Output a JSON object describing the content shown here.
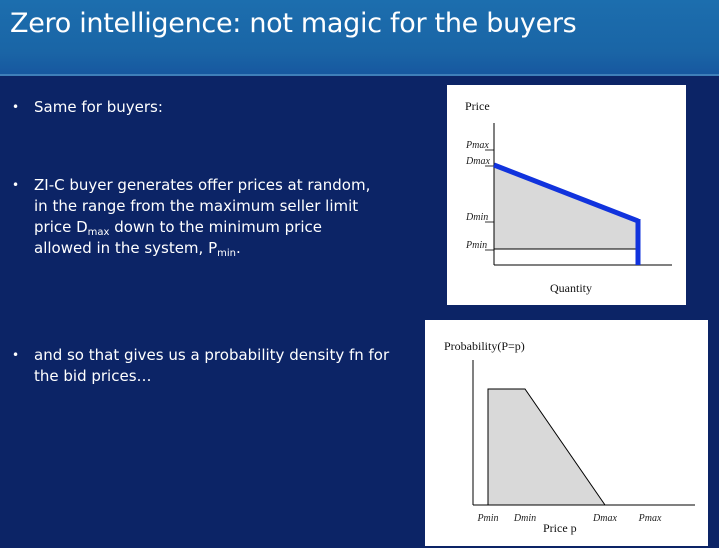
{
  "slide": {
    "title": "Zero intelligence: not magic for the buyers",
    "bullets": [
      {
        "lines": [
          "Same for buyers:"
        ]
      },
      {
        "line1": "ZI-C buyer generates offer prices at random,",
        "line2": "in the range from the maximum seller limit",
        "line3_pre": "price D",
        "line3_sub": "max",
        "line3_post": " down to the minimum price",
        "line4_pre": "allowed in the system, P",
        "line4_sub": "min",
        "line4_post": "."
      },
      {
        "line1": "and so that gives us a probability density fn for",
        "line2": "the bid prices…"
      }
    ],
    "bullet_symbol": "•"
  },
  "chart_data": [
    {
      "type": "line",
      "ylabel": "Price",
      "xlabel": "Quantity",
      "y_ticks": [
        "Pmax",
        "Dmax",
        "Dmin",
        "Pmin"
      ],
      "series": [
        {
          "x": [
            0,
            1
          ],
          "y": [
            "Dmax",
            "Dmin"
          ]
        }
      ],
      "fill": "region below the line down to Pmin",
      "colors": {
        "line": "#1133dd",
        "fill": "#d9d9d9"
      }
    },
    {
      "type": "area",
      "ylabel": "Probability(P=p)",
      "xlabel": "Price p",
      "x_ticks": [
        "Pmin",
        "Dmin",
        "Dmax",
        "Pmax"
      ],
      "description_points": [
        {
          "x": "Pmin",
          "y": "flat high"
        },
        {
          "x": "Dmin",
          "y": "flat high"
        },
        {
          "x": "Dmax",
          "y": 0
        }
      ],
      "colors": {
        "fill": "#d9d9d9",
        "line": "#000000"
      }
    }
  ],
  "colors": {
    "background": "#0c2466",
    "title_bar": "#1a65a6",
    "text": "#ffffff"
  }
}
